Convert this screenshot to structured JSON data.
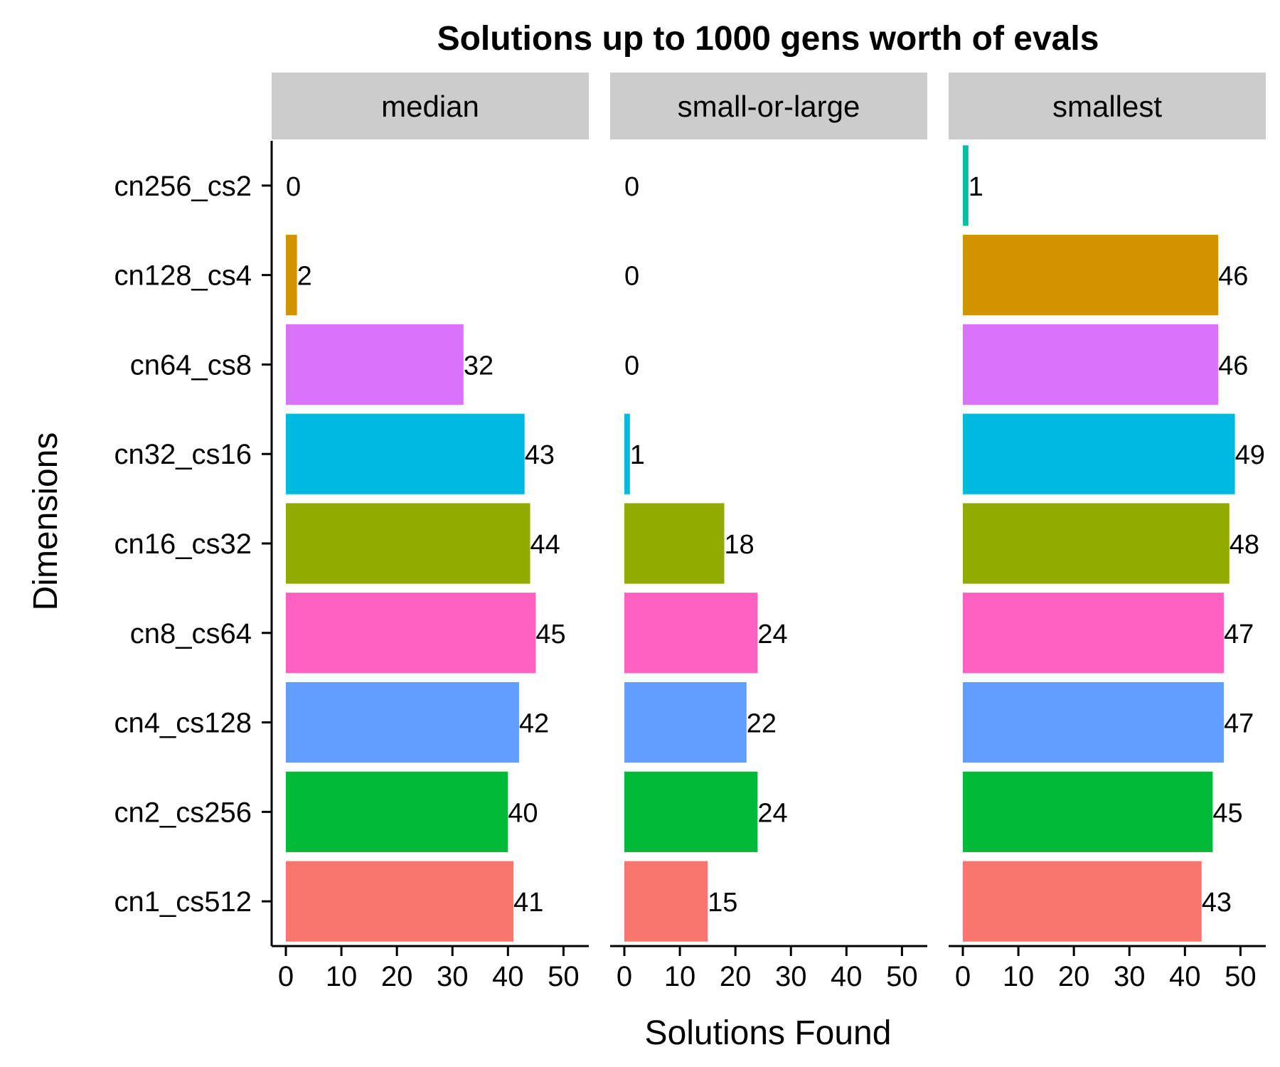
{
  "chart_data": {
    "type": "bar",
    "orientation": "horizontal",
    "title": "Solutions up to 1000 gens worth of evals",
    "xlabel": "Solutions Found",
    "ylabel": "Dimensions",
    "xlim": [
      0,
      52
    ],
    "x_ticks": [
      "0",
      "10",
      "20",
      "30",
      "40",
      "50"
    ],
    "grid": false,
    "legend": "none",
    "categories": [
      "cn256_cs2",
      "cn128_cs4",
      "cn64_cs8",
      "cn32_cs16",
      "cn16_cs32",
      "cn8_cs64",
      "cn4_cs128",
      "cn2_cs256",
      "cn1_cs512"
    ],
    "category_colors": {
      "cn256_cs2": "#00BFA4",
      "cn128_cs4": "#D39200",
      "cn64_cs8": "#DB72FB",
      "cn32_cs16": "#00B9E3",
      "cn16_cs32": "#93AA00",
      "cn8_cs64": "#FF61C3",
      "cn4_cs128": "#619CFF",
      "cn2_cs256": "#00BA38",
      "cn1_cs512": "#F8766D"
    },
    "panels": [
      {
        "name": "median",
        "values": [
          0,
          2,
          32,
          43,
          44,
          45,
          42,
          40,
          41
        ]
      },
      {
        "name": "small-or-large",
        "values": [
          0,
          0,
          0,
          1,
          18,
          24,
          22,
          24,
          15
        ]
      },
      {
        "name": "smallest",
        "values": [
          1,
          46,
          46,
          49,
          48,
          47,
          47,
          45,
          43
        ]
      }
    ]
  }
}
